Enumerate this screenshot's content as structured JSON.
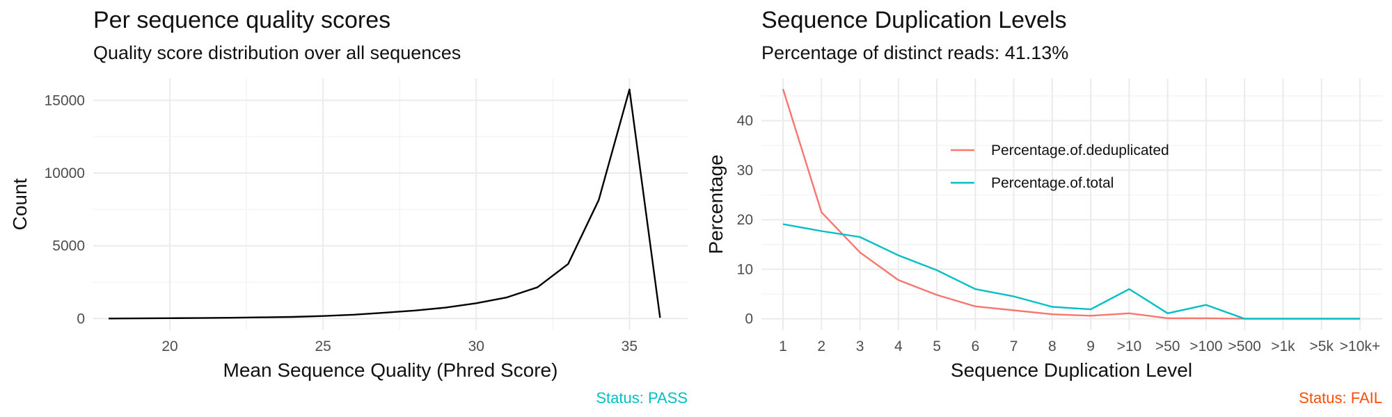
{
  "chart_data": [
    {
      "type": "line",
      "title": "Per sequence quality scores",
      "subtitle": "Quality score distribution over all sequences",
      "xlabel": "Mean Sequence Quality (Phred Score)",
      "ylabel": "Count",
      "xlim": [
        17.5,
        36.9
      ],
      "ylim": [
        -800,
        16500
      ],
      "x_ticks": [
        20,
        25,
        30,
        35
      ],
      "y_ticks": [
        0,
        5000,
        10000,
        15000
      ],
      "x_tick_labels": [
        "20",
        "25",
        "30",
        "35"
      ],
      "y_tick_labels": [
        "0",
        "5000",
        "10000",
        "15000"
      ],
      "grid": true,
      "series": [
        {
          "color": "#000000",
          "x": [
            18,
            19,
            20,
            21,
            22,
            23,
            24,
            25,
            26,
            27,
            28,
            29,
            30,
            31,
            32,
            33,
            34,
            35,
            36
          ],
          "y": [
            0,
            10,
            20,
            30,
            50,
            80,
            110,
            170,
            260,
            400,
            550,
            750,
            1050,
            1450,
            2150,
            3750,
            8150,
            15750,
            50
          ]
        }
      ],
      "status": {
        "text": "Status: PASS",
        "color": "#00bfc4"
      }
    },
    {
      "type": "line",
      "title": "Sequence Duplication Levels",
      "subtitle": "Percentage of distinct reads: 41.13%",
      "xlabel": "Sequence Duplication Level",
      "ylabel": "Percentage",
      "categories": [
        "1",
        "2",
        "3",
        "4",
        "5",
        "6",
        "7",
        "8",
        "9",
        ">10",
        ">50",
        ">100",
        ">500",
        ">1k",
        ">5k",
        ">10k+"
      ],
      "ylim": [
        -2.3,
        48.5
      ],
      "y_ticks": [
        0,
        10,
        20,
        30,
        40
      ],
      "y_tick_labels": [
        "0",
        "10",
        "20",
        "30",
        "40"
      ],
      "grid": true,
      "legend_position": "inside-top-center",
      "series": [
        {
          "name": "Percentage.of.deduplicated",
          "color": "#f8766d",
          "values": [
            46.4,
            21.5,
            13.4,
            7.8,
            4.8,
            2.5,
            1.7,
            0.9,
            0.6,
            1.1,
            0.1,
            0.1,
            0.0,
            0.0,
            0.0,
            0.0
          ]
        },
        {
          "name": "Percentage.of.total",
          "color": "#00bfc4",
          "values": [
            19.1,
            17.7,
            16.5,
            12.8,
            9.8,
            6.0,
            4.5,
            2.4,
            1.9,
            6.0,
            1.1,
            2.8,
            0.0,
            0.0,
            0.0,
            0.0
          ]
        }
      ],
      "status": {
        "text": "Status: FAIL",
        "color": "#fc4e07"
      }
    }
  ]
}
